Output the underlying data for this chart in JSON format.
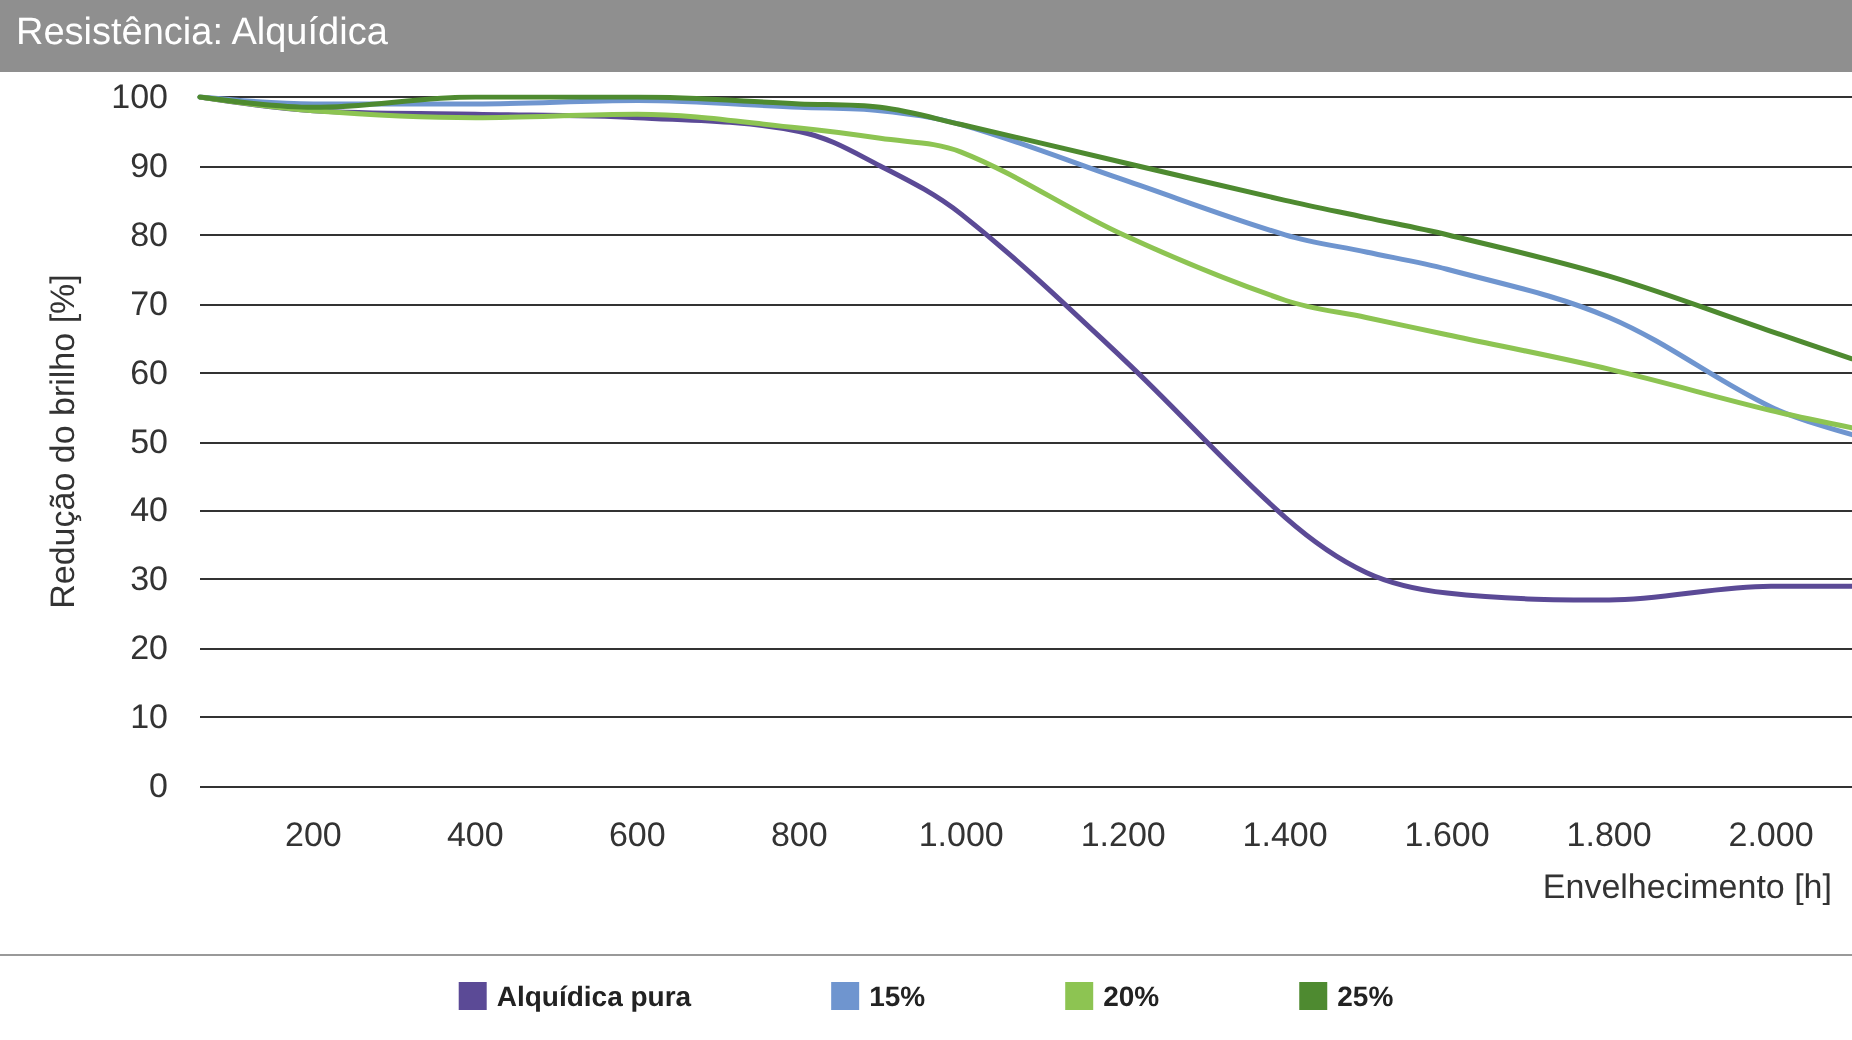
{
  "chart_data": {
    "type": "line",
    "title": "Resistência: Alquídica",
    "xlabel": "Envelhecimento [h]",
    "ylabel": "Redução do brilho [%]",
    "xlim": [
      60,
      2100
    ],
    "xticks": [
      {
        "value": 200,
        "label": "200"
      },
      {
        "value": 400,
        "label": "400"
      },
      {
        "value": 600,
        "label": "600"
      },
      {
        "value": 800,
        "label": "800"
      },
      {
        "value": 1000,
        "label": "1.000"
      },
      {
        "value": 1200,
        "label": "1.200"
      },
      {
        "value": 1400,
        "label": "1.400"
      },
      {
        "value": 1600,
        "label": "1.600"
      },
      {
        "value": 1800,
        "label": "1.800"
      },
      {
        "value": 2000,
        "label": "2.000"
      }
    ],
    "ylim": [
      0,
      100
    ],
    "yticks": [
      0,
      10,
      20,
      30,
      40,
      50,
      60,
      70,
      80,
      90,
      100
    ],
    "grid": "y",
    "legend": "bottom",
    "marker": "none",
    "line_style": "solid",
    "x": [
      60,
      200,
      400,
      600,
      800,
      900,
      1000,
      1200,
      1400,
      1500,
      1600,
      1800,
      2000,
      2100
    ],
    "series": [
      {
        "name": "Alquídica pura",
        "color": "#5b4a96",
        "values": [
          100,
          98,
          97.5,
          97,
          95,
          90,
          83,
          62,
          39,
          31,
          28,
          27,
          29,
          29
        ]
      },
      {
        "name": "15%",
        "color": "#6f95cf",
        "values": [
          100,
          99,
          99,
          99.5,
          98.5,
          98,
          96,
          88,
          80,
          77.5,
          75,
          68,
          55,
          51
        ]
      },
      {
        "name": "20%",
        "color": "#8dc452",
        "values": [
          100,
          98,
          97,
          97.5,
          95.5,
          94,
          92,
          80,
          70.5,
          68,
          65.5,
          60.5,
          54.5,
          52
        ]
      },
      {
        "name": "25%",
        "color": "#4e8a30",
        "values": [
          100,
          98.5,
          100,
          100,
          99,
          98.5,
          96,
          90.5,
          85,
          82.5,
          80,
          74,
          66,
          62
        ]
      }
    ]
  }
}
